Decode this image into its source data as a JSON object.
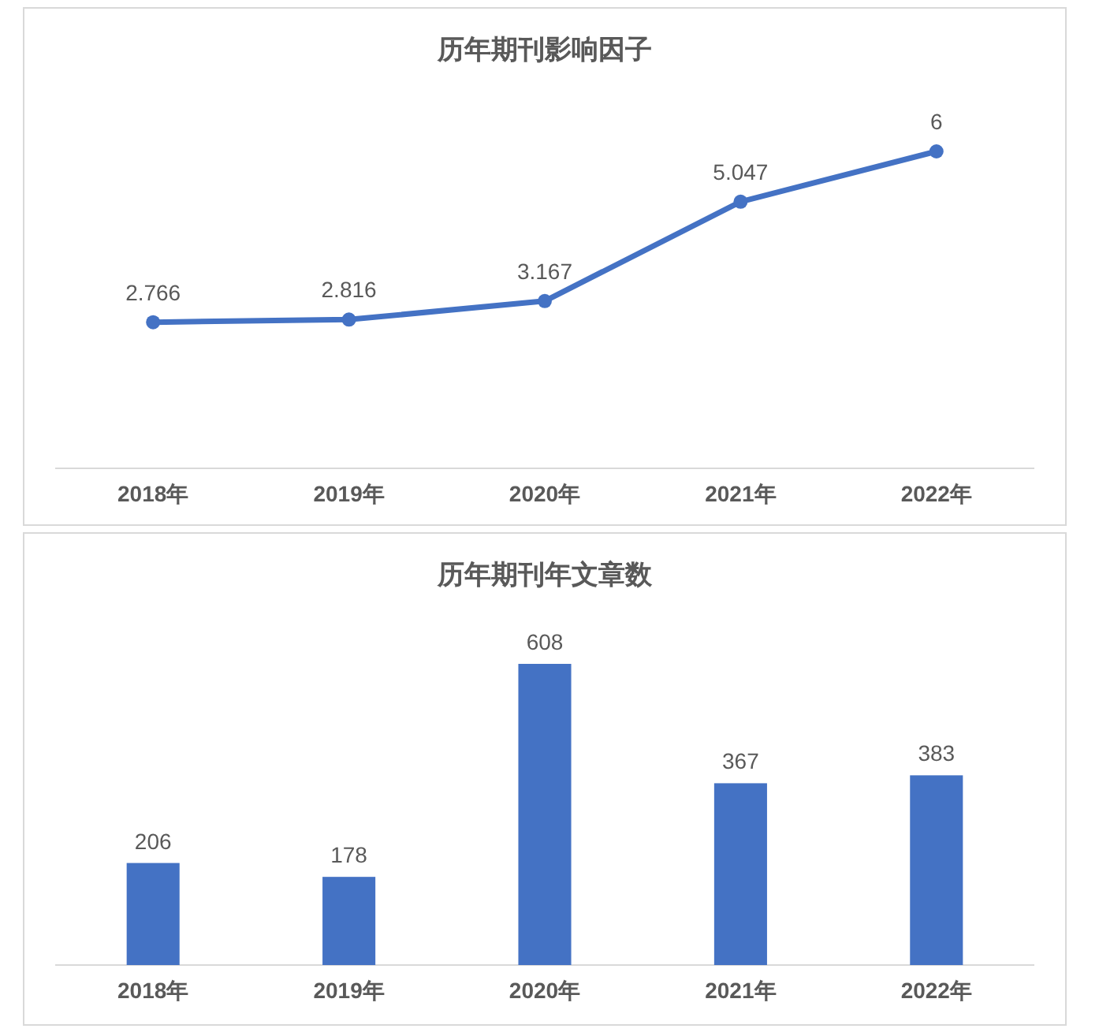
{
  "chart_data": [
    {
      "type": "line",
      "title": "历年期刊影响因子",
      "categories": [
        "2018年",
        "2019年",
        "2020年",
        "2021年",
        "2022年"
      ],
      "series": [
        {
          "color": "#4472c4",
          "values": [
            2.766,
            2.816,
            3.167,
            5.047,
            6
          ]
        }
      ],
      "data_labels": true,
      "marker": "circle",
      "line_style": "solid",
      "grid": false,
      "tick_labels": "x"
    },
    {
      "type": "bar",
      "title": "历年期刊年文章数",
      "categories": [
        "2018年",
        "2019年",
        "2020年",
        "2021年",
        "2022年"
      ],
      "series": [
        {
          "color": "#4472c4",
          "values": [
            206,
            178,
            608,
            367,
            383
          ]
        }
      ],
      "data_labels": true,
      "grid": false,
      "tick_labels": "x"
    }
  ]
}
